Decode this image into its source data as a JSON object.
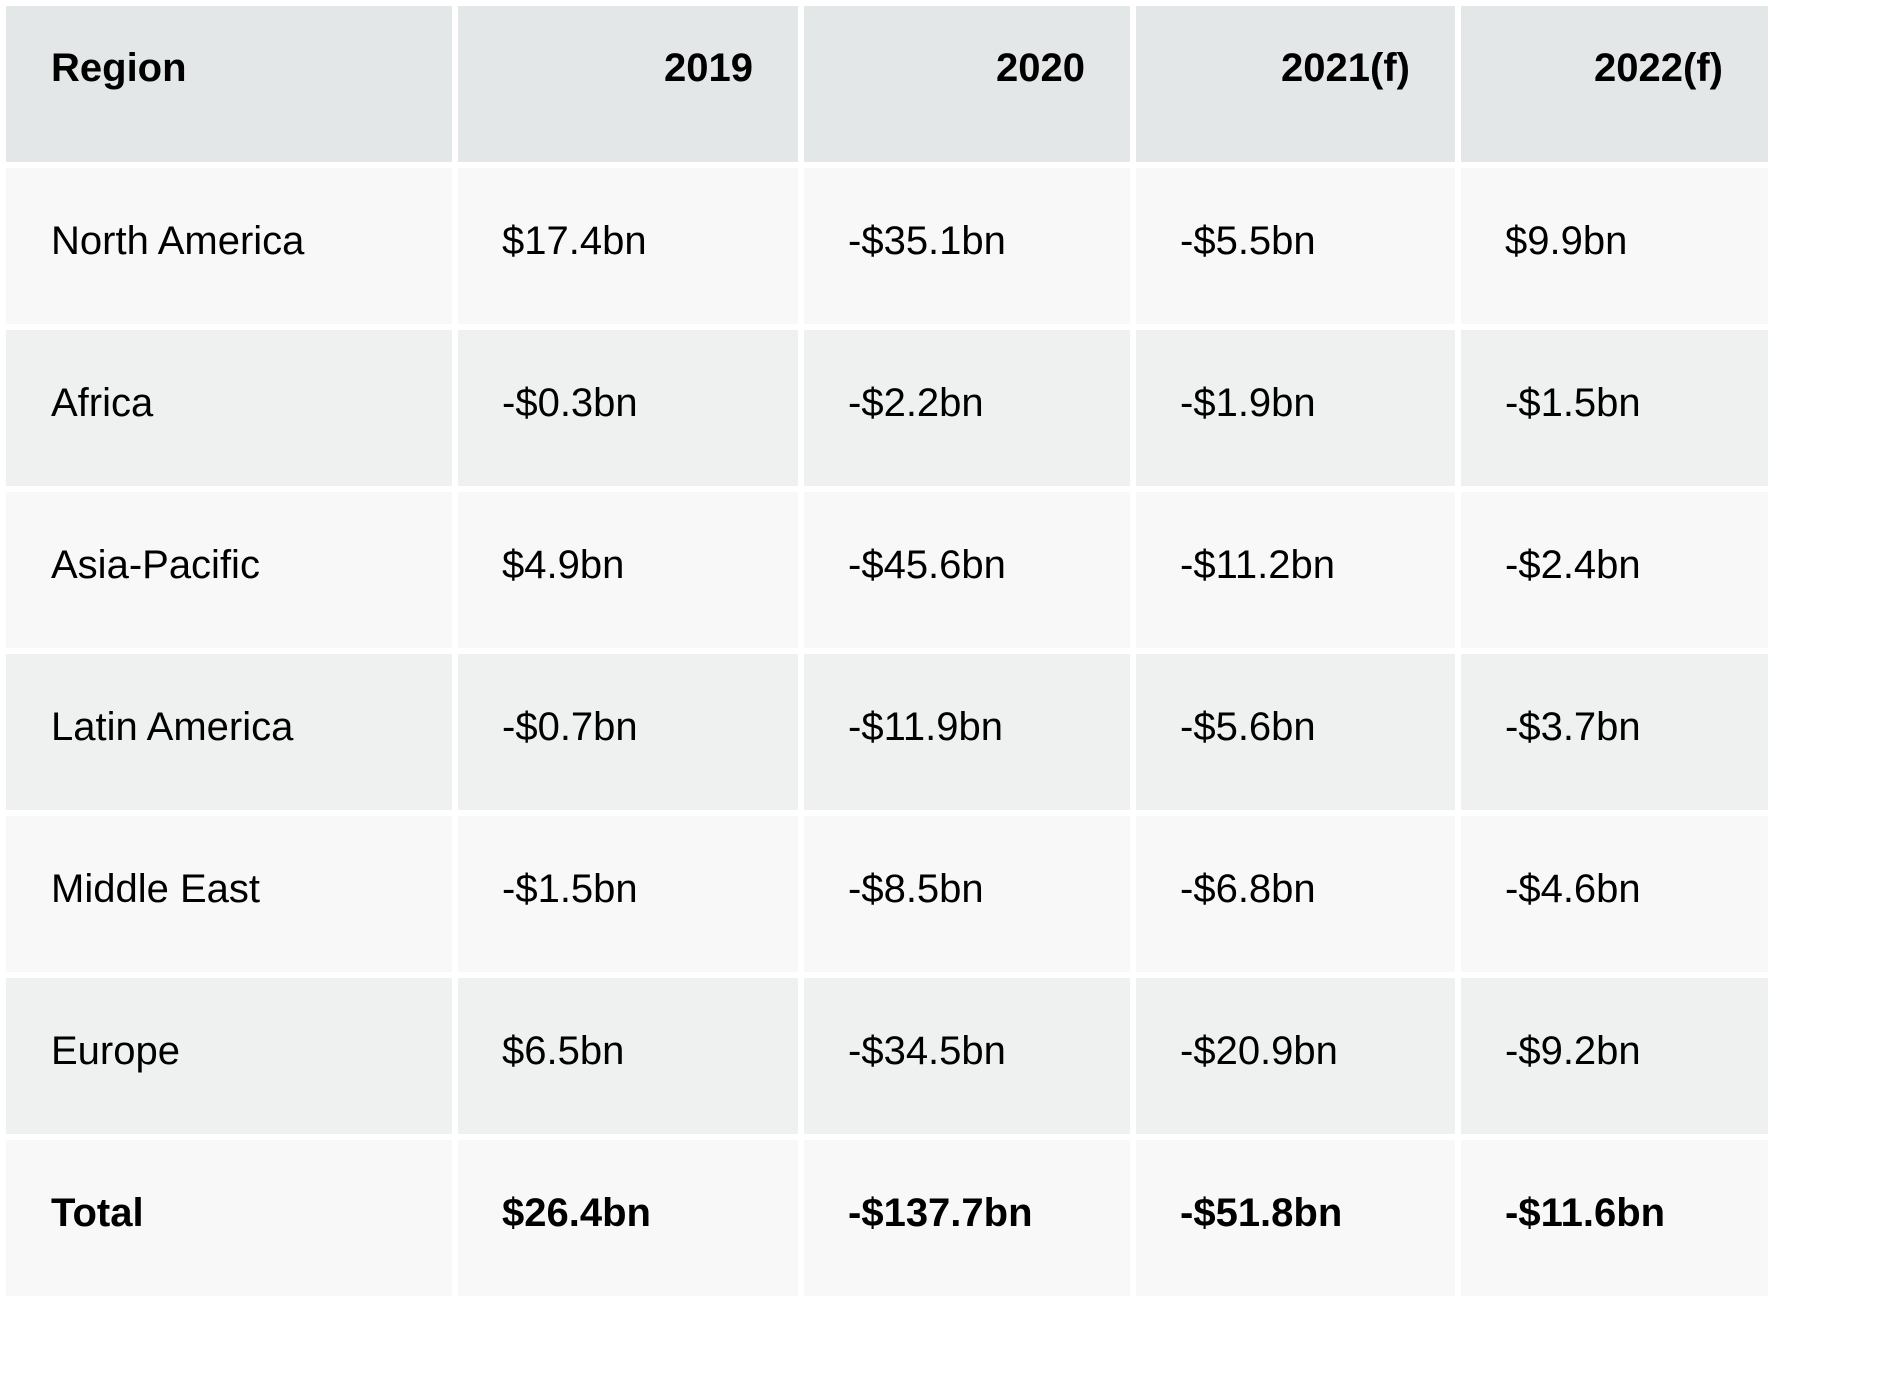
{
  "table": {
    "header": {
      "region": "Region",
      "years": [
        "2019",
        "2020",
        "2021(f)",
        "2022(f)"
      ]
    },
    "rows": [
      {
        "region": "North America",
        "values": [
          "$17.4bn",
          "-$35.1bn",
          "-$5.5bn",
          "$9.9bn"
        ]
      },
      {
        "region": "Africa",
        "values": [
          "-$0.3bn",
          "-$2.2bn",
          "-$1.9bn",
          "-$1.5bn"
        ]
      },
      {
        "region": "Asia-Pacific",
        "values": [
          "$4.9bn",
          "-$45.6bn",
          "-$11.2bn",
          "-$2.4bn"
        ]
      },
      {
        "region": "Latin America",
        "values": [
          "-$0.7bn",
          "-$11.9bn",
          "-$5.6bn",
          "-$3.7bn"
        ]
      },
      {
        "region": "Middle East",
        "values": [
          "-$1.5bn",
          "-$8.5bn",
          "-$6.8bn",
          "-$4.6bn"
        ]
      },
      {
        "region": "Europe",
        "values": [
          "$6.5bn",
          "-$34.5bn",
          "-$20.9bn",
          "-$9.2bn"
        ]
      }
    ],
    "total": {
      "region": "Total",
      "values": [
        "$26.4bn",
        "-$137.7bn",
        "-$51.8bn",
        "-$11.6bn"
      ]
    }
  }
}
